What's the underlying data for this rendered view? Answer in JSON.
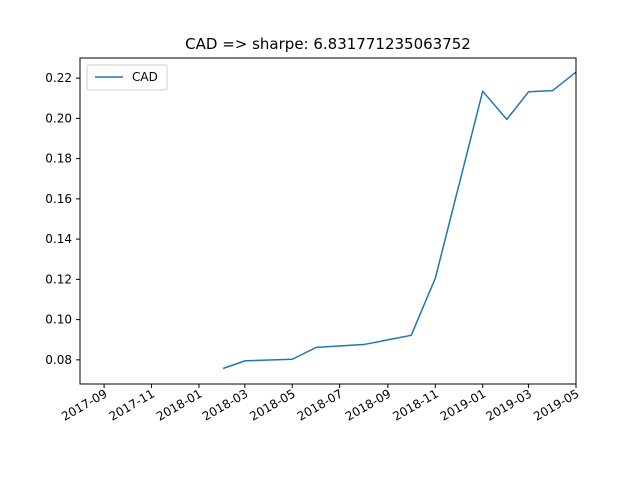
{
  "chart_data": {
    "type": "line",
    "title": "CAD => sharpe: 6.831771235063752",
    "xlabel": "",
    "ylabel": "",
    "xlim": [
      "2017-08-01",
      "2019-05-01"
    ],
    "ylim": [
      0.068,
      0.23
    ],
    "x_ticks": [
      "2017-09",
      "2017-11",
      "2018-01",
      "2018-03",
      "2018-05",
      "2018-07",
      "2018-09",
      "2018-11",
      "2019-01",
      "2019-03",
      "2019-05"
    ],
    "y_ticks": [
      "0.08",
      "0.10",
      "0.12",
      "0.14",
      "0.16",
      "0.18",
      "0.20",
      "0.22"
    ],
    "legend": {
      "position": "top-left"
    },
    "grid": false,
    "series": [
      {
        "name": "CAD",
        "color": "#1f77b4",
        "x": [
          "2018-02-01",
          "2018-03-01",
          "2018-05-01",
          "2018-06-01",
          "2018-08-01",
          "2018-10-01",
          "2018-11-01",
          "2019-01-01",
          "2019-02-01",
          "2019-03-01",
          "2019-04-01",
          "2019-05-01"
        ],
        "values": [
          0.0757,
          0.0795,
          0.0803,
          0.0862,
          0.0876,
          0.0922,
          0.1205,
          0.2135,
          0.1995,
          0.2132,
          0.2138,
          0.223
        ]
      }
    ]
  }
}
